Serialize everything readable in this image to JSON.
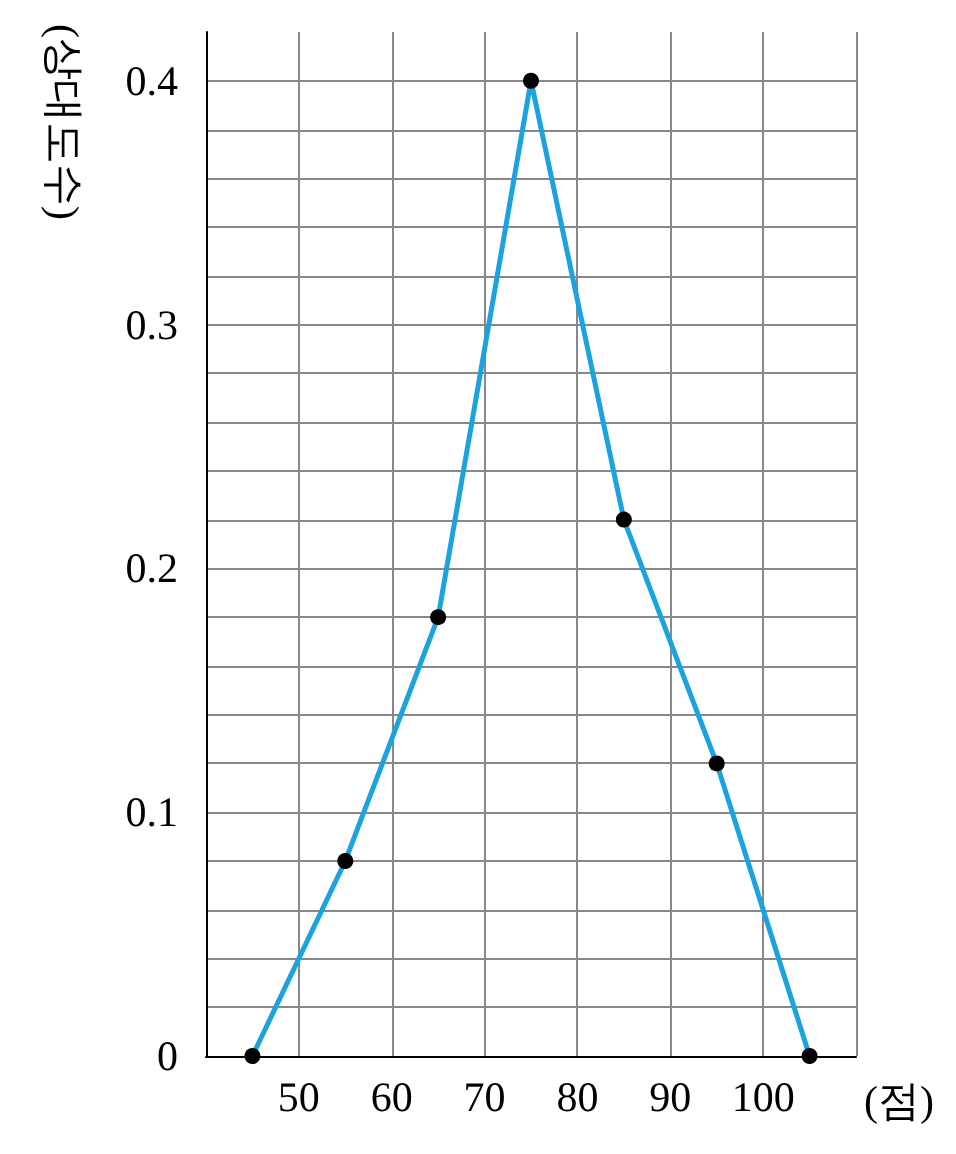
{
  "chart_data": {
    "type": "line",
    "x": [
      45,
      55,
      65,
      75,
      85,
      95,
      105
    ],
    "series": [
      {
        "color": "#1aa3e0",
        "values": [
          0,
          0.08,
          0.18,
          0.4,
          0.22,
          0.12,
          0
        ]
      }
    ],
    "xlabel": "(점)",
    "ylabel": "(상대도수)",
    "xlim": [
      40,
      110
    ],
    "xticks": [
      {
        "value": 40,
        "label": null
      },
      50,
      60,
      70,
      80,
      90,
      100,
      {
        "value": 110,
        "label": null
      }
    ],
    "ylim": [
      0,
      0.42
    ],
    "yticks": [
      0,
      {
        "value": 0.02,
        "label": null
      },
      {
        "value": 0.04,
        "label": null
      },
      {
        "value": 0.06,
        "label": null
      },
      {
        "value": 0.08,
        "label": null
      },
      0.1,
      {
        "value": 0.12,
        "label": null
      },
      {
        "value": 0.14,
        "label": null
      },
      {
        "value": 0.16,
        "label": null
      },
      {
        "value": 0.18,
        "label": null
      },
      0.2,
      {
        "value": 0.22,
        "label": null
      },
      {
        "value": 0.24,
        "label": null
      },
      {
        "value": 0.26,
        "label": null
      },
      {
        "value": 0.28,
        "label": null
      },
      0.3,
      {
        "value": 0.32,
        "label": null
      },
      {
        "value": 0.34,
        "label": null
      },
      {
        "value": 0.36,
        "label": null
      },
      {
        "value": 0.38,
        "label": null
      },
      0.4
    ],
    "grid": true,
    "marker": "circle",
    "line_style": "solid"
  }
}
